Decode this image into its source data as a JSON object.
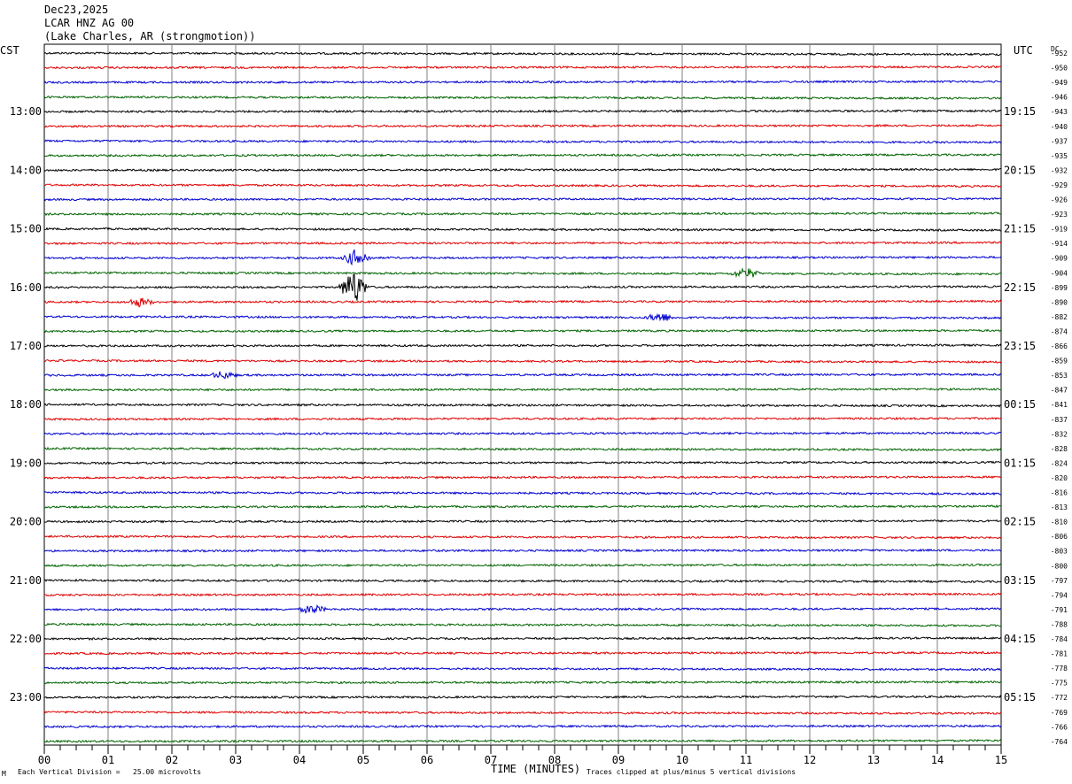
{
  "header": {
    "date": "Dec23,2025",
    "station": "LCAR HNZ AG 00",
    "location": "(Lake Charles, AR (strongmotion))"
  },
  "left_axis_label": "CST",
  "right_axis_label": "UTC",
  "dc_label": "DC",
  "footer": {
    "mark": "M",
    "scale_note": "Each Vertical Division =   25.00 microvolts",
    "clip_note": "Traces clipped at plus/minus 5 vertical divisions"
  },
  "colors": {
    "cycle": [
      "#000000",
      "#e00000",
      "#0000d0",
      "#006400"
    ],
    "grid": "#808080"
  },
  "chart_data": {
    "type": "line",
    "subtype": "helicorder",
    "title": "LCAR HNZ AG 00",
    "xlabel": "TIME (MINUTES)",
    "x_ticks": [
      "00",
      "01",
      "02",
      "03",
      "04",
      "05",
      "06",
      "07",
      "08",
      "09",
      "10",
      "11",
      "12",
      "13",
      "14",
      "15"
    ],
    "xlim": [
      0,
      15
    ],
    "minutes_per_trace": 15,
    "trace_count": 48,
    "left_time_labels": [
      {
        "trace": 4,
        "label": "13:00"
      },
      {
        "trace": 8,
        "label": "14:00"
      },
      {
        "trace": 12,
        "label": "15:00"
      },
      {
        "trace": 16,
        "label": "16:00"
      },
      {
        "trace": 20,
        "label": "17:00"
      },
      {
        "trace": 24,
        "label": "18:00"
      },
      {
        "trace": 28,
        "label": "19:00"
      },
      {
        "trace": 32,
        "label": "20:00"
      },
      {
        "trace": 36,
        "label": "21:00"
      },
      {
        "trace": 40,
        "label": "22:00"
      },
      {
        "trace": 44,
        "label": "23:00"
      }
    ],
    "right_time_labels": [
      {
        "trace": 4,
        "label": "19:15"
      },
      {
        "trace": 8,
        "label": "20:15"
      },
      {
        "trace": 12,
        "label": "21:15"
      },
      {
        "trace": 16,
        "label": "22:15"
      },
      {
        "trace": 20,
        "label": "23:15"
      },
      {
        "trace": 24,
        "label": "00:15"
      },
      {
        "trace": 28,
        "label": "01:15"
      },
      {
        "trace": 32,
        "label": "02:15"
      },
      {
        "trace": 36,
        "label": "03:15"
      },
      {
        "trace": 40,
        "label": "04:15"
      },
      {
        "trace": 44,
        "label": "05:15"
      }
    ],
    "dc_offsets": [
      "-952",
      "-950",
      "-949",
      "-946",
      "-943",
      "-940",
      "-937",
      "-935",
      "-932",
      "-929",
      "-926",
      "-923",
      "-919",
      "-914",
      "-909",
      "-904",
      "-899",
      "-890",
      "-882",
      "-874",
      "-866",
      "-859",
      "-853",
      "-847",
      "-841",
      "-837",
      "-832",
      "-828",
      "-824",
      "-820",
      "-816",
      "-813",
      "-810",
      "-806",
      "-803",
      "-800",
      "-797",
      "-794",
      "-791",
      "-788",
      "-784",
      "-781",
      "-778",
      "-775",
      "-772",
      "-769",
      "-766",
      "-764"
    ],
    "events": [
      {
        "trace": 14,
        "minute": 4.9,
        "amplitude": 2.5
      },
      {
        "trace": 15,
        "minute": 11.0,
        "amplitude": 1.5
      },
      {
        "trace": 16,
        "minute": 4.85,
        "amplitude": 5
      },
      {
        "trace": 17,
        "minute": 1.5,
        "amplitude": 1.2
      },
      {
        "trace": 18,
        "minute": 9.65,
        "amplitude": 1.3
      },
      {
        "trace": 22,
        "minute": 2.8,
        "amplitude": 1.0
      },
      {
        "trace": 38,
        "minute": 4.2,
        "amplitude": 1.2
      }
    ]
  }
}
